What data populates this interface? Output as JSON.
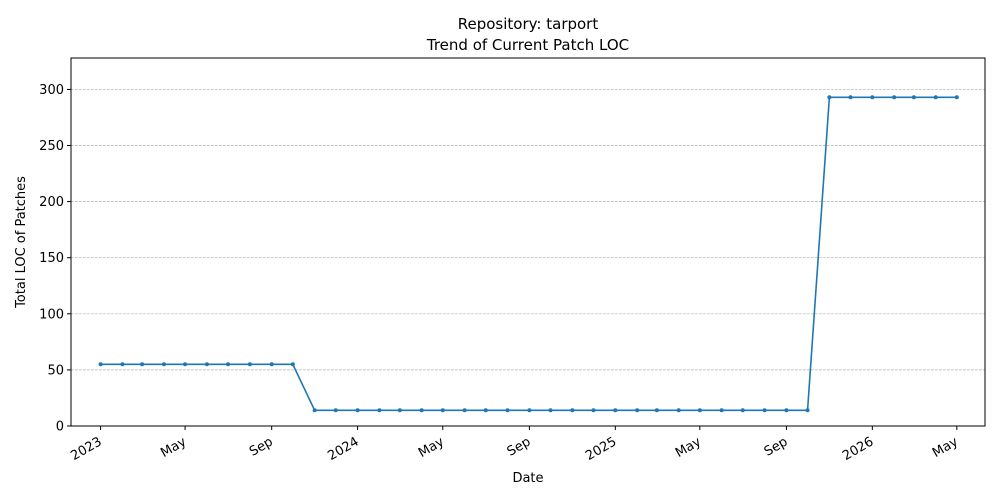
{
  "chart_data": {
    "type": "line",
    "title": "Repository: tarport",
    "subtitle": "Trend of Current Patch LOC",
    "xlabel": "Date",
    "ylabel": "Total LOC of Patches",
    "ylim": [
      0,
      328
    ],
    "xlim": [
      "2022-11-20",
      "2026-06-10"
    ],
    "grid": "y-dashed",
    "line_color": "#1f77b4",
    "x_ticks": [
      {
        "date": "2023-01-01",
        "label": "2023"
      },
      {
        "date": "2023-05-01",
        "label": "May"
      },
      {
        "date": "2023-09-01",
        "label": "Sep"
      },
      {
        "date": "2024-01-01",
        "label": "2024"
      },
      {
        "date": "2024-05-01",
        "label": "May"
      },
      {
        "date": "2024-09-01",
        "label": "Sep"
      },
      {
        "date": "2025-01-01",
        "label": "2025"
      },
      {
        "date": "2025-05-01",
        "label": "May"
      },
      {
        "date": "2025-09-01",
        "label": "Sep"
      },
      {
        "date": "2026-01-01",
        "label": "2026"
      },
      {
        "date": "2026-05-01",
        "label": "May"
      }
    ],
    "y_ticks": [
      0,
      50,
      100,
      150,
      200,
      250,
      300
    ],
    "x": [
      "2023-01-01",
      "2023-02-01",
      "2023-03-01",
      "2023-04-01",
      "2023-05-01",
      "2023-06-01",
      "2023-07-01",
      "2023-08-01",
      "2023-09-01",
      "2023-10-01",
      "2023-11-01",
      "2023-12-01",
      "2024-01-01",
      "2024-02-01",
      "2024-03-01",
      "2024-04-01",
      "2024-05-01",
      "2024-06-01",
      "2024-07-01",
      "2024-08-01",
      "2024-09-01",
      "2024-10-01",
      "2024-11-01",
      "2024-12-01",
      "2025-01-01",
      "2025-02-01",
      "2025-03-01",
      "2025-04-01",
      "2025-05-01",
      "2025-06-01",
      "2025-07-01",
      "2025-08-01",
      "2025-09-01",
      "2025-10-01",
      "2025-11-01",
      "2025-12-01",
      "2026-01-01",
      "2026-02-01",
      "2026-03-01",
      "2026-04-01",
      "2026-05-01"
    ],
    "y": [
      55,
      55,
      55,
      55,
      55,
      55,
      55,
      55,
      55,
      55,
      14,
      14,
      14,
      14,
      14,
      14,
      14,
      14,
      14,
      14,
      14,
      14,
      14,
      14,
      14,
      14,
      14,
      14,
      14,
      14,
      14,
      14,
      14,
      14,
      293,
      293,
      293,
      293,
      293,
      293,
      293
    ]
  }
}
